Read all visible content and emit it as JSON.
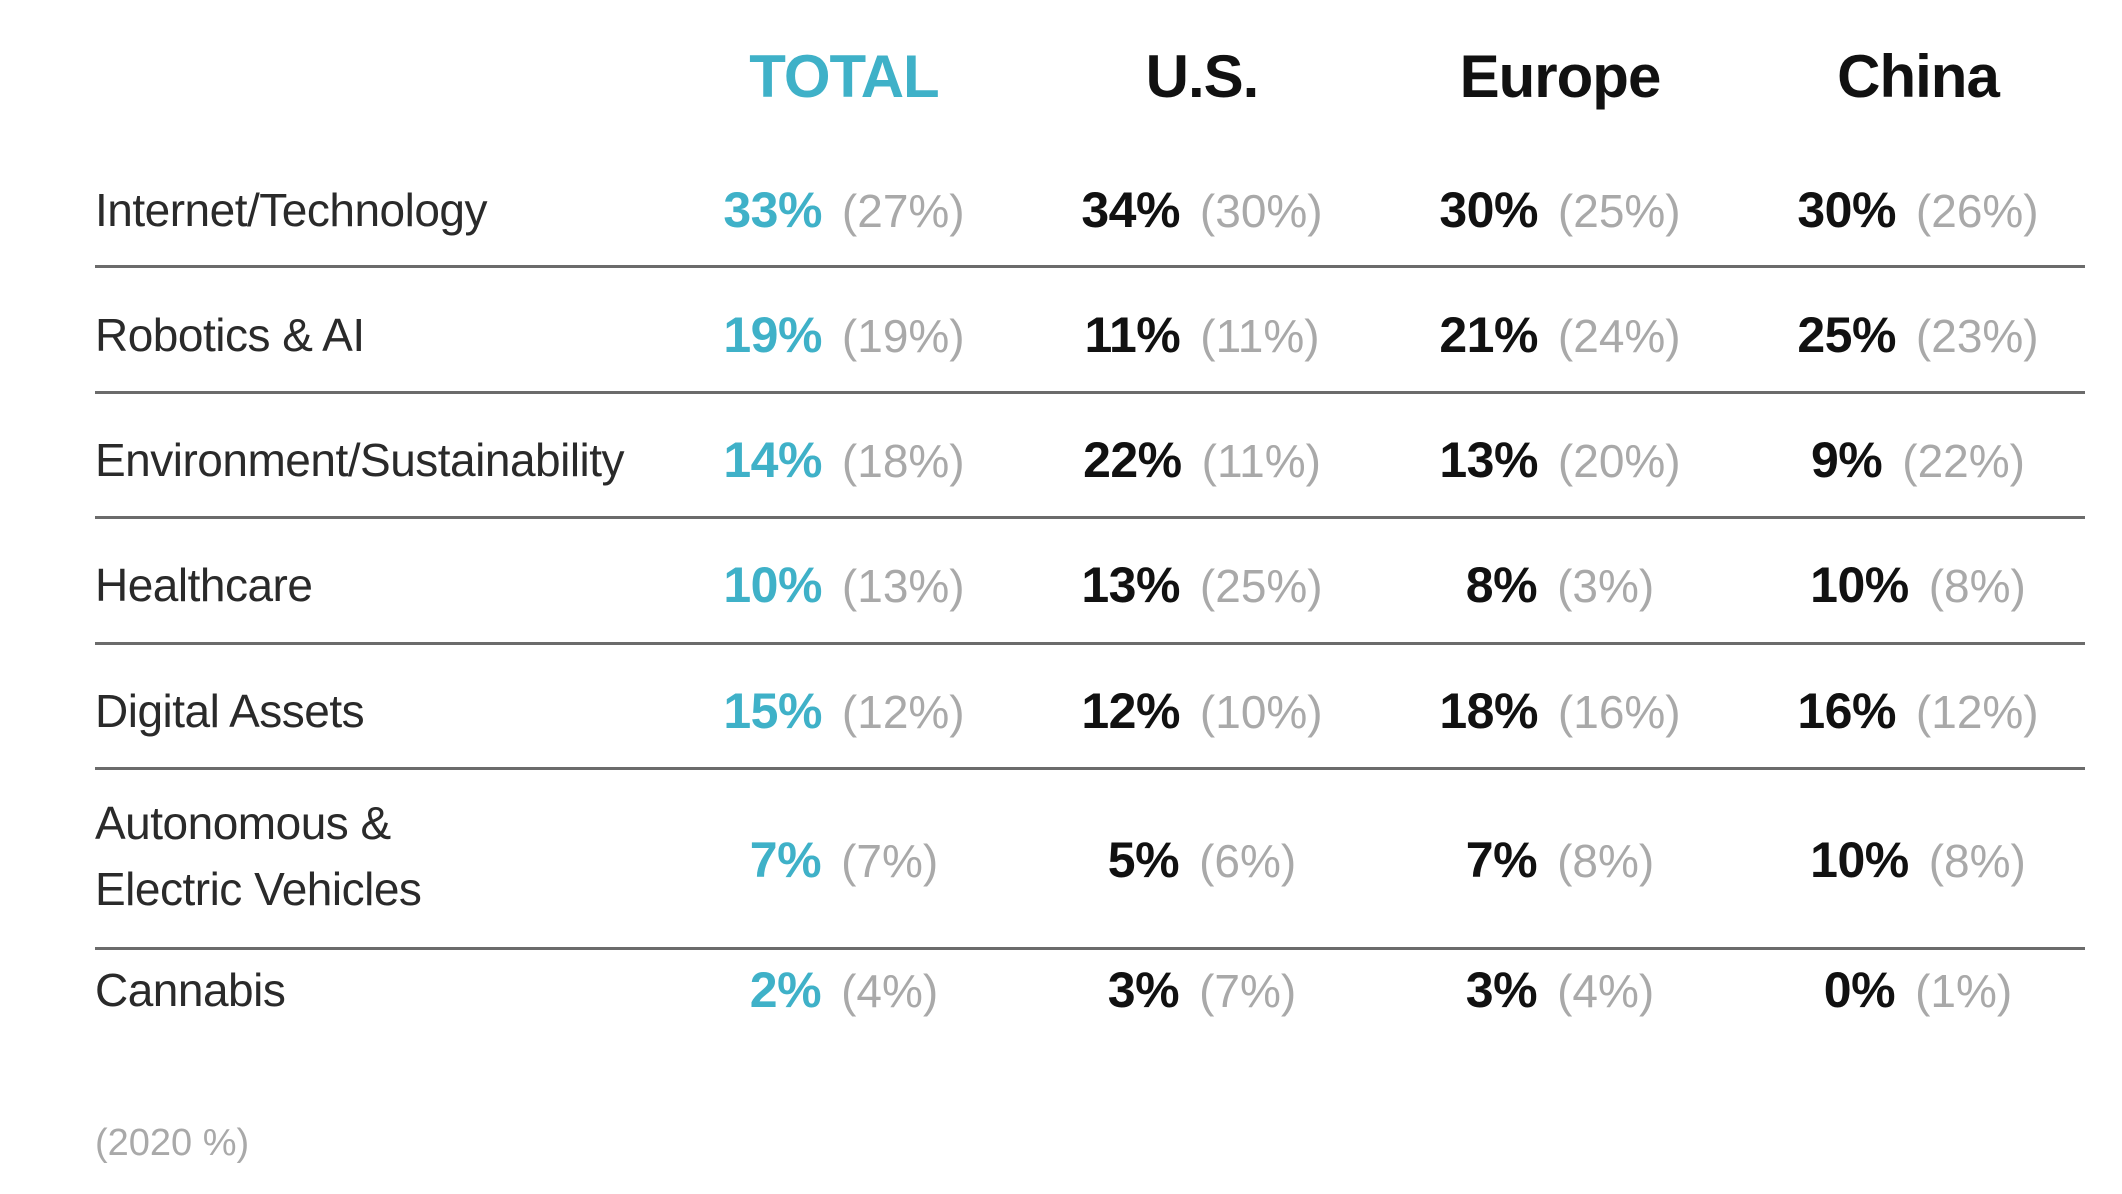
{
  "chart_data": {
    "type": "table",
    "columns": [
      "TOTAL",
      "U.S.",
      "Europe",
      "China"
    ],
    "rows": [
      {
        "label": "Internet/Technology",
        "current": [
          "33%",
          "34%",
          "30%",
          "30%"
        ],
        "previous": [
          "(27%)",
          "(30%)",
          "(25%)",
          "(26%)"
        ]
      },
      {
        "label": "Robotics & AI",
        "current": [
          "19%",
          "11%",
          "21%",
          "25%"
        ],
        "previous": [
          "(19%)",
          "(11%)",
          "(24%)",
          "(23%)"
        ]
      },
      {
        "label": "Environment/Sustainability",
        "current": [
          "14%",
          "22%",
          "13%",
          "9%"
        ],
        "previous": [
          "(18%)",
          "(11%)",
          "(20%)",
          "(22%)"
        ]
      },
      {
        "label": "Healthcare",
        "current": [
          "10%",
          "13%",
          "8%",
          "10%"
        ],
        "previous": [
          "(13%)",
          "(25%)",
          "(3%)",
          "(8%)"
        ]
      },
      {
        "label": "Digital Assets",
        "current": [
          "15%",
          "12%",
          "18%",
          "16%"
        ],
        "previous": [
          "(12%)",
          "(10%)",
          "(16%)",
          "(12%)"
        ]
      },
      {
        "label_lines": [
          "Autonomous &",
          "Electric Vehicles"
        ],
        "current": [
          "7%",
          "5%",
          "7%",
          "10%"
        ],
        "previous": [
          "(7%)",
          "(6%)",
          "(8%)",
          "(8%)"
        ]
      },
      {
        "label": "Cannabis",
        "current": [
          "2%",
          "3%",
          "3%",
          "0%"
        ],
        "previous": [
          "(4%)",
          "(7%)",
          "(4%)",
          "(1%)"
        ]
      }
    ],
    "footnote": "(2020 %)",
    "colors": {
      "total": "#3fb1c8",
      "current": "#111111",
      "previous": "#a9a9a9",
      "rule": "#6b6b6b"
    }
  }
}
